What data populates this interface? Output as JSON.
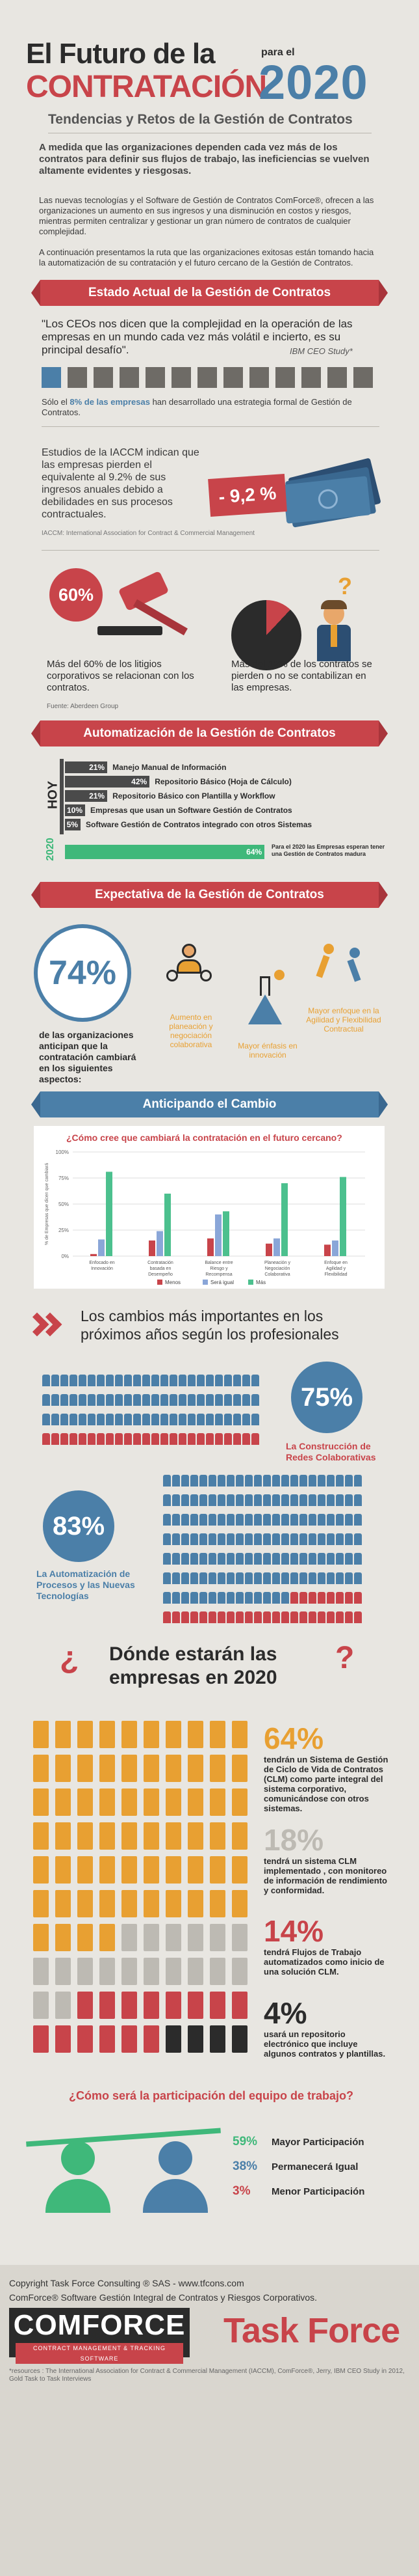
{
  "header": {
    "title_line1": "El Futuro de la",
    "title_line2": "CONTRATACIÓN",
    "para_el": "para el",
    "year": "2020",
    "subtitle": "Tendencias y Retos de la Gestión de Contratos",
    "intro1": "A medida que las organizaciones dependen cada vez más de los contratos para definir sus flujos de trabajo, las ineficiencias se vuelven altamente evidentes y riesgosas.",
    "intro2": "Las nuevas tecnologías y el Software de Gestión de Contratos ComForce®, ofrecen a las organizaciones un aumento en sus ingresos y una disminución en costos y riesgos, mientras permiten centralizar y gestionar un gran número de contratos de cualquier complejidad.",
    "intro3": "A continuación presentamos la ruta que las organizaciones exitosas están tomando hacia la automatización de su contratación y el futuro cercano de la Gestión de Contratos."
  },
  "estado": {
    "banner": "Estado Actual de la Gestión de Contratos",
    "quote": "\"Los CEOs nos dicen que la complejidad en la operación de las empresas en un mundo cada vez más volátil e incierto, es su principal desafío\".",
    "quote_source": "IBM CEO Study*",
    "buildings_pre": "Sólo el ",
    "buildings_pct": "8% de las empresas",
    "buildings_post": " han desarrollado una estrategia formal de Gestión de Contratos.",
    "iaccm_text": "Estudios de la IACCM indican que las empresas pierden el equivalente al 9.2% de sus ingresos anuales debido a debilidades en sus procesos contractuales.",
    "iaccm_badge": "- 9,2 %",
    "iaccm_note": "IACCM: International Association for Contract & Commercial Management",
    "litigios_pct": "60%",
    "litigios_text": "Más del 60% de los litigios corporativos se relacionan con los contratos.",
    "perdidos_text": "Más del 12% de los contratos se pierden o no se contabilizan en las empresas.",
    "source": "Fuente: Aberdeen Group"
  },
  "automatizacion": {
    "banner": "Automatización de la Gestión de Contratos",
    "hoy": "HOY",
    "year2020": "2020",
    "bars": [
      {
        "pct": "21%",
        "label": "Manejo Manual de Información",
        "value": 21
      },
      {
        "pct": "42%",
        "label": "Repositorio Básico (Hoja de Cálculo)",
        "value": 42
      },
      {
        "pct": "21%",
        "label": "Repositorio Básico con Plantilla y Workflow",
        "value": 21
      },
      {
        "pct": "10%",
        "label": "Empresas que usan un Software Gestión de Contratos",
        "value": 10
      },
      {
        "pct": "5%",
        "label": "Software Gestión de Contratos integrado con otros Sistemas",
        "value": 5
      }
    ],
    "bar2020_pct": "64%",
    "bar2020_value": 64,
    "bar2020_label": "Para el 2020 las Empresas esperan tener una Gestión de Contratos madura"
  },
  "expectativa": {
    "banner": "Expectativa de la Gestión de Contratos",
    "big_pct": "74%",
    "big_text": "de las organizaciones anticipan que la contratación cambiará en los siguientes aspectos:",
    "item1": "Aumento en planeación y negociación colaborativa",
    "item2": "Mayor énfasis en innovación",
    "item3": "Mayor enfoque en la Agilidad y Flexibilidad Contractual"
  },
  "cambio": {
    "banner": "Anticipando el Cambio",
    "chart_title": "¿Cómo cree que cambiará la contratación en el futuro cercano?",
    "legend": [
      "Menos",
      "Será igual",
      "Más"
    ]
  },
  "chart_data": {
    "type": "bar",
    "title": "¿Cómo cree que cambiará la contratación en el futuro cercano?",
    "ylabel": "% de Empresas que dicen que cambiará",
    "ylim": [
      0,
      100
    ],
    "yticks": [
      "0%",
      "25%",
      "50%",
      "75%",
      "100%"
    ],
    "categories": [
      "Enfocado en Innovación",
      "Contratación basada en Desempeño",
      "Balance entre Riesgo y Recompensa",
      "Planeación y Negociación Colaborativa",
      "Enfoque en Agilidad y Flexibilidad"
    ],
    "series": [
      {
        "name": "Menos",
        "values": [
          2,
          15,
          17,
          12,
          11
        ],
        "color": "#c8444a"
      },
      {
        "name": "Será igual",
        "values": [
          16,
          24,
          40,
          17,
          15
        ],
        "color": "#8aa6d8"
      },
      {
        "name": "Más",
        "values": [
          81,
          60,
          43,
          70,
          76
        ],
        "color": "#4cc08e"
      }
    ]
  },
  "cambios": {
    "title": "Los cambios más importantes en los próximos años según los profesionales",
    "pct1": "75%",
    "text1": "La Construcción de Redes Colaborativas",
    "pct2": "83%",
    "text2": "La Automatización de Procesos y las Nuevas Tecnologías"
  },
  "donde": {
    "title_q1": "¿",
    "title": "Dónde estarán las empresas en 2020",
    "title_q2": "?",
    "s1_pct": "64%",
    "s1_text": "tendrán un Sistema de Gestión de Ciclo de Vida de Contratos (CLM) como parte integral del sistema corporativo, comunicándose con otros sistemas.",
    "s2_pct": "18%",
    "s2_text": "tendrá un sistema CLM implementado , con monitoreo de información de rendimiento y conformidad.",
    "s3_pct": "14%",
    "s3_text": "tendrá Flujos de Trabajo automatizados como inicio de una solución CLM.",
    "s4_pct": "4%",
    "s4_text": "usará un repositorio electrónico que incluye algunos contratos y plantillas."
  },
  "equipo": {
    "title": "¿Cómo será la participación del equipo de trabajo?",
    "r1_pct": "59%",
    "r1_label": "Mayor Participación",
    "r2_pct": "38%",
    "r2_label": "Permanecerá Igual",
    "r3_pct": "3%",
    "r3_label": "Menor Participación"
  },
  "footer": {
    "copyright": "Copyright Task Force Consulting ® SAS - www.tfcons.com",
    "trademark": "ComForce® Software Gestión Integral de Contratos y Riesgos Corporativos.",
    "logo1": "COMFORCE",
    "logo1_sub": "CONTRACT MANAGEMENT & TRACKING SOFTWARE",
    "logo2": "Task Force",
    "resources": "*resources : The International Association for Contract & Commercial Management (IACCM), ComForce®, Jerry, IBM CEO Study in 2012, Gold Task to Task Interviews"
  }
}
